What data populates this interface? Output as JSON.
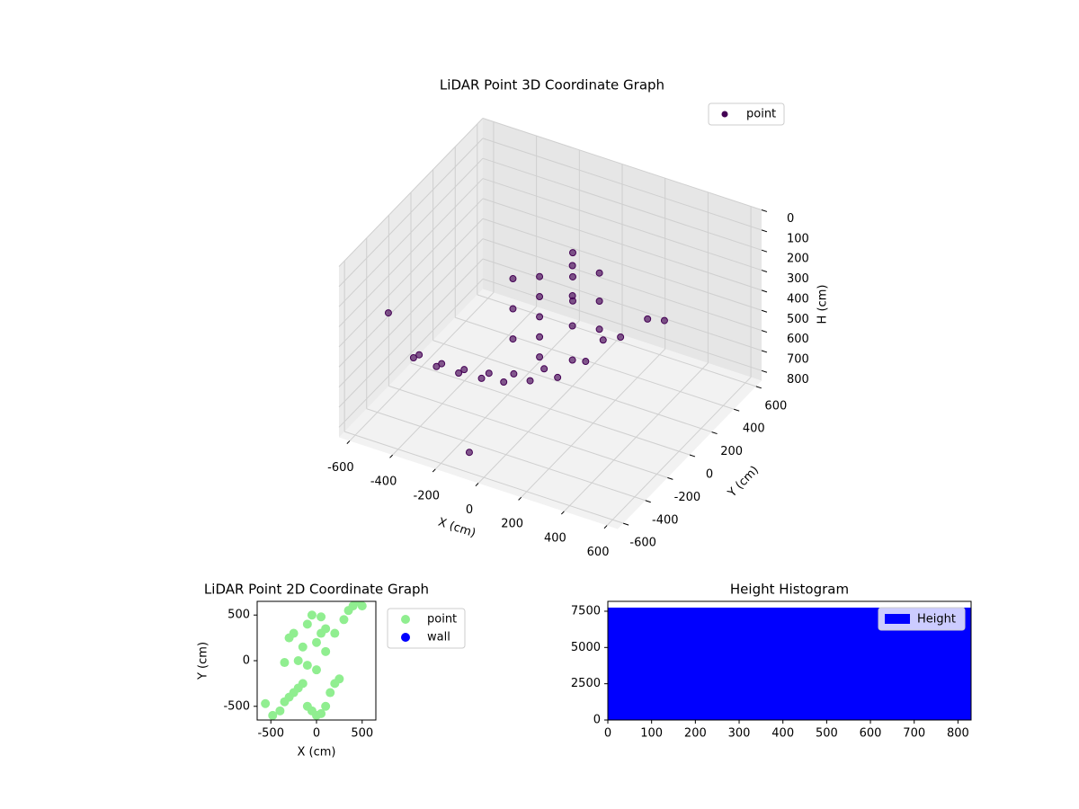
{
  "chart_data": [
    {
      "type": "scatter3d",
      "title": "LiDAR Point 3D Coordinate Graph",
      "xlabel": "X (cm)",
      "ylabel": "Y (cm)",
      "zlabel": "H (cm)",
      "xlim": [
        -650,
        650
      ],
      "ylim": [
        -650,
        650
      ],
      "zlim": [
        0,
        850
      ],
      "z_inverted": true,
      "xticks": [
        -600,
        -400,
        -200,
        0,
        200,
        400,
        600
      ],
      "yticks": [
        -600,
        -400,
        -200,
        0,
        200,
        400,
        600
      ],
      "zticks": [
        0,
        100,
        200,
        300,
        400,
        500,
        600,
        700,
        800
      ],
      "grid": true,
      "legend": "upper right",
      "series": [
        {
          "name": "point",
          "color": "#440154",
          "x": [
            -611,
            -500,
            -399,
            -300,
            -209,
            -120,
            -34,
            10,
            50,
            -560,
            -450,
            -350,
            -250,
            -160,
            -70,
            0,
            40,
            -592,
            -117,
            -113,
            -113,
            -113,
            -113,
            -113,
            0,
            0,
            0,
            -200,
            -200,
            -200,
            100,
            100,
            100,
            -50,
            -50,
            -50,
            242,
            300
          ],
          "y": [
            -52,
            -60,
            -55,
            -40,
            -16,
            50,
            132,
            300,
            538,
            -100,
            -110,
            -100,
            -70,
            -20,
            80,
            200,
            400,
            -316,
            -505,
            122,
            122,
            122,
            122,
            122,
            200,
            200,
            200,
            50,
            50,
            50,
            250,
            250,
            250,
            300,
            300,
            300,
            410,
            450
          ],
          "z": [
            780,
            780,
            780,
            780,
            780,
            780,
            780,
            780,
            780,
            720,
            720,
            720,
            720,
            720,
            720,
            720,
            720,
            400,
            820,
            300,
            400,
            500,
            600,
            700,
            250,
            400,
            550,
            300,
            450,
            600,
            280,
            420,
            560,
            260,
            380,
            500,
            550,
            560
          ]
        }
      ]
    },
    {
      "type": "scatter",
      "title": "LiDAR Point 2D Coordinate Graph",
      "xlabel": "X (cm)",
      "ylabel": "Y (cm)",
      "xlim": [
        -650,
        650
      ],
      "ylim": [
        -650,
        650
      ],
      "xticks": [
        -500,
        0,
        500
      ],
      "yticks": [
        -500,
        0,
        500
      ],
      "legend": "outside right",
      "series": [
        {
          "name": "point",
          "color": "#90ee90",
          "x": [
            -560,
            -480,
            -400,
            -350,
            -300,
            -250,
            -200,
            -150,
            -100,
            -50,
            0,
            50,
            100,
            150,
            200,
            250,
            -300,
            -250,
            -200,
            -150,
            -100,
            -50,
            0,
            50,
            100,
            -350,
            -100,
            0,
            50,
            100,
            200,
            300,
            350,
            400,
            450,
            500
          ],
          "y": [
            -470,
            -600,
            -550,
            -450,
            -400,
            -350,
            -300,
            -250,
            -500,
            -550,
            -600,
            -580,
            -500,
            -350,
            -250,
            -200,
            250,
            300,
            0,
            150,
            400,
            500,
            200,
            300,
            100,
            -20,
            -50,
            -100,
            480,
            350,
            300,
            450,
            550,
            600,
            650,
            600
          ]
        },
        {
          "name": "wall",
          "color": "#0000ff",
          "x": [],
          "y": []
        }
      ]
    },
    {
      "type": "histogram",
      "title": "Height Histogram",
      "bins": [
        0,
        830
      ],
      "xlim": [
        0,
        830
      ],
      "ylim": [
        0,
        8180
      ],
      "xticks": [
        0,
        100,
        200,
        300,
        400,
        500,
        600,
        700,
        800
      ],
      "yticks": [
        0,
        2500,
        5000,
        7500
      ],
      "legend": "upper right",
      "series": [
        {
          "name": "Height",
          "color": "#0000ff",
          "values": [
            7750
          ]
        }
      ]
    }
  ]
}
